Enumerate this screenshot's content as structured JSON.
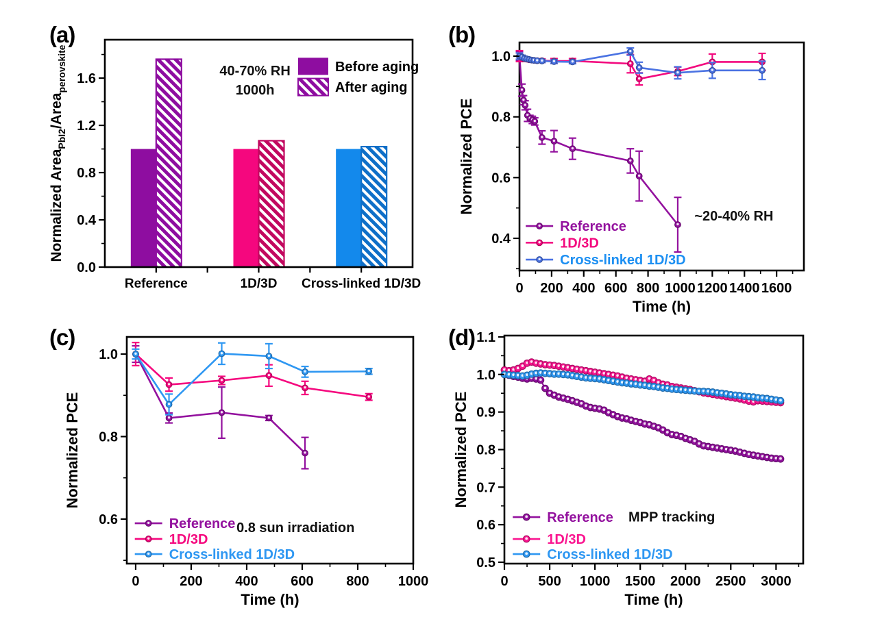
{
  "figure": {
    "background": "#ffffff",
    "description": "Four-panel stability figure for perovskite solar cells"
  },
  "palette": {
    "purple": "#93119E",
    "purple_bar": "#8E0DA0",
    "pink": "#F5077E",
    "pink_dark_hatch": "#C2085F",
    "blue_bar": "#1389EC",
    "blue_dark_hatch": "#0E6FC8",
    "blue_line_b": "#4A72E2",
    "blue_line_cd": "#2E97F2",
    "black": "#000000"
  },
  "chart_data": [
    {
      "panel": "a",
      "panel_label": "(a)",
      "type": "bar",
      "ylabel_segments": [
        {
          "text": "Normalized Area"
        },
        {
          "text": "PbI2",
          "sub": true
        },
        {
          "text": "/Area"
        },
        {
          "text": "perovskite",
          "sub": true
        }
      ],
      "categories": [
        "Reference",
        "1D/3D",
        "Cross-linked 1D/3D"
      ],
      "groups": [
        {
          "label": "Before aging",
          "hatch": false,
          "values": [
            1.0,
            1.0,
            1.0
          ],
          "colors": [
            "#8E0DA0",
            "#F5077E",
            "#1389EC"
          ]
        },
        {
          "label": "After aging",
          "hatch": true,
          "values": [
            1.76,
            1.07,
            1.02
          ],
          "colors": [
            "#8E0DA0",
            "#C2085F",
            "#0E6FC8"
          ]
        }
      ],
      "ylim": [
        0,
        1.925
      ],
      "yticks": [
        "0.0",
        "0.4",
        "0.8",
        "1.2",
        "1.6"
      ],
      "annotation": [
        "40-70% RH",
        "1000h"
      ],
      "legend": {
        "items": [
          {
            "label": "Before aging",
            "swatch": "solid",
            "color": "#8E0DA0"
          },
          {
            "label": "After aging",
            "swatch": "hatch",
            "color": "#8E0DA0"
          }
        ]
      }
    },
    {
      "panel": "b",
      "panel_label": "(b)",
      "type": "line",
      "ylabel": "Normalized PCE",
      "xlabel": "Time (h)",
      "xlim": [
        0,
        1770
      ],
      "ylim": [
        0.294,
        1.045
      ],
      "xticks": [
        0,
        200,
        400,
        600,
        800,
        1000,
        1200,
        1400,
        1600
      ],
      "yticks": [
        "0.4",
        "0.6",
        "0.8",
        "1.0"
      ],
      "annotation": [
        "~20-40% RH"
      ],
      "series": [
        {
          "name": "Reference",
          "color": "#93119E",
          "x": [
            0,
            15,
            25,
            35,
            50,
            65,
            80,
            95,
            140,
            215,
            330,
            690,
            745,
            985
          ],
          "y": [
            1.0,
            0.888,
            0.855,
            0.838,
            0.805,
            0.795,
            0.79,
            0.785,
            0.732,
            0.72,
            0.695,
            0.655,
            0.605,
            0.445
          ],
          "err": [
            0.015,
            0.02,
            0.015,
            0.015,
            0.02,
            0.01,
            0.012,
            0.012,
            0.022,
            0.035,
            0.035,
            0.04,
            0.082,
            0.09
          ]
        },
        {
          "name": "1D/3D",
          "color": "#F3087E",
          "x": [
            0,
            15,
            30,
            45,
            60,
            75,
            90,
            110,
            140,
            215,
            330,
            690,
            745,
            985,
            1200,
            1510
          ],
          "y": [
            1.0,
            0.995,
            0.991,
            0.99,
            0.988,
            0.987,
            0.986,
            0.985,
            0.985,
            0.984,
            0.984,
            0.975,
            0.925,
            0.95,
            0.981,
            0.981
          ],
          "err": [
            0.018,
            0.008,
            0.006,
            0.006,
            0.006,
            0.006,
            0.006,
            0.006,
            0.006,
            0.008,
            0.008,
            0.03,
            0.02,
            0.014,
            0.026,
            0.028
          ]
        },
        {
          "name": "Cross-linked 1D/3D",
          "color": "#4A72E2",
          "label_color": "#1C8FF2",
          "x": [
            0,
            15,
            30,
            45,
            60,
            75,
            90,
            110,
            140,
            215,
            330,
            690,
            745,
            985,
            1200,
            1510
          ],
          "y": [
            1.0,
            0.997,
            0.993,
            0.991,
            0.989,
            0.987,
            0.986,
            0.985,
            0.984,
            0.982,
            0.981,
            1.015,
            0.962,
            0.945,
            0.953,
            0.953
          ],
          "err": [
            0.01,
            0.006,
            0.005,
            0.005,
            0.005,
            0.005,
            0.005,
            0.005,
            0.005,
            0.006,
            0.006,
            0.012,
            0.018,
            0.02,
            0.026,
            0.03
          ]
        }
      ]
    },
    {
      "panel": "c",
      "panel_label": "(c)",
      "type": "line",
      "ylabel": "Normalized PCE",
      "xlabel": "Time (h)",
      "xlim": [
        -32,
        1000
      ],
      "ylim": [
        0.492,
        1.0415
      ],
      "xticks": [
        0,
        200,
        400,
        600,
        800,
        1000
      ],
      "yticks": [
        "0.6",
        "0.8",
        "1.0"
      ],
      "annotation": [
        "0.8 sun irradiation"
      ],
      "series": [
        {
          "name": "Reference",
          "color": "#93119E",
          "x": [
            0,
            120,
            310,
            480,
            610
          ],
          "y": [
            1.0,
            0.845,
            0.858,
            0.845,
            0.76
          ],
          "err": [
            0.02,
            0.012,
            0.062,
            0.006,
            0.038
          ]
        },
        {
          "name": "1D/3D",
          "color": "#F5077E",
          "x": [
            0,
            120,
            310,
            480,
            610,
            840
          ],
          "y": [
            1.0,
            0.926,
            0.936,
            0.948,
            0.918,
            0.896
          ],
          "err": [
            0.028,
            0.016,
            0.01,
            0.026,
            0.016,
            0.008
          ]
        },
        {
          "name": "Cross-linked 1D/3D",
          "color": "#2E97F2",
          "x": [
            0,
            120,
            310,
            480,
            610,
            840
          ],
          "y": [
            1.0,
            0.878,
            1.001,
            0.995,
            0.957,
            0.958
          ],
          "err": [
            0.012,
            0.025,
            0.026,
            0.03,
            0.013,
            0.007
          ]
        }
      ]
    },
    {
      "panel": "d",
      "panel_label": "(d)",
      "type": "line",
      "ylabel": "Normalized PCE",
      "xlabel": "Time (h)",
      "xlim": [
        0,
        3300
      ],
      "ylim": [
        0.4963,
        1.1036
      ],
      "xticks": [
        0,
        500,
        1000,
        1500,
        2000,
        2500,
        3000
      ],
      "yticks": [
        "0.5",
        "0.6",
        "0.7",
        "0.8",
        "0.9",
        "1.0",
        "1.1"
      ],
      "annotation": [
        "MPP tracking"
      ],
      "series": [
        {
          "name": "Reference",
          "color": "#93119E",
          "x": [
            0,
            50,
            100,
            150,
            200,
            250,
            300,
            350,
            400,
            450,
            500,
            550,
            600,
            650,
            700,
            750,
            800,
            850,
            900,
            950,
            1000,
            1050,
            1100,
            1150,
            1200,
            1250,
            1300,
            1350,
            1400,
            1450,
            1500,
            1550,
            1600,
            1650,
            1700,
            1750,
            1800,
            1850,
            1900,
            1950,
            2000,
            2050,
            2100,
            2150,
            2200,
            2250,
            2300,
            2350,
            2400,
            2450,
            2500,
            2550,
            2600,
            2650,
            2700,
            2750,
            2800,
            2850,
            2900,
            2950,
            3000,
            3050
          ],
          "y": [
            1.0,
            0.998,
            0.995,
            0.993,
            0.99,
            0.988,
            0.99,
            0.988,
            0.985,
            0.963,
            0.95,
            0.945,
            0.94,
            0.937,
            0.934,
            0.93,
            0.926,
            0.922,
            0.916,
            0.912,
            0.91,
            0.908,
            0.905,
            0.898,
            0.893,
            0.888,
            0.884,
            0.882,
            0.878,
            0.875,
            0.872,
            0.868,
            0.866,
            0.862,
            0.858,
            0.852,
            0.845,
            0.84,
            0.838,
            0.835,
            0.83,
            0.826,
            0.822,
            0.815,
            0.81,
            0.808,
            0.806,
            0.804,
            0.802,
            0.8,
            0.798,
            0.796,
            0.793,
            0.79,
            0.787,
            0.785,
            0.783,
            0.781,
            0.779,
            0.777,
            0.776,
            0.775
          ]
        },
        {
          "name": "1D/3D",
          "color": "#FA1590",
          "x": [
            0,
            50,
            100,
            150,
            200,
            250,
            300,
            350,
            400,
            450,
            500,
            550,
            600,
            650,
            700,
            750,
            800,
            850,
            900,
            950,
            1000,
            1050,
            1100,
            1150,
            1200,
            1250,
            1300,
            1350,
            1400,
            1450,
            1500,
            1550,
            1600,
            1650,
            1700,
            1750,
            1800,
            1850,
            1900,
            1950,
            2000,
            2050,
            2100,
            2150,
            2200,
            2250,
            2300,
            2350,
            2400,
            2450,
            2500,
            2550,
            2600,
            2650,
            2700,
            2750,
            2800,
            2850,
            2900,
            2950,
            3000,
            3050
          ],
          "y": [
            1.012,
            1.01,
            1.012,
            1.016,
            1.022,
            1.03,
            1.033,
            1.03,
            1.028,
            1.026,
            1.025,
            1.024,
            1.022,
            1.02,
            1.018,
            1.016,
            1.014,
            1.012,
            1.01,
            1.008,
            1.006,
            1.004,
            1.002,
            1.0,
            0.998,
            0.996,
            0.993,
            0.99,
            0.988,
            0.986,
            0.984,
            0.982,
            0.988,
            0.984,
            0.978,
            0.974,
            0.972,
            0.968,
            0.966,
            0.964,
            0.962,
            0.96,
            0.957,
            0.954,
            0.951,
            0.949,
            0.947,
            0.945,
            0.943,
            0.941,
            0.939,
            0.937,
            0.935,
            0.932,
            0.929,
            0.927,
            0.93,
            0.929,
            0.928,
            0.927,
            0.926,
            0.925
          ]
        },
        {
          "name": "Cross-linked 1D/3D",
          "color": "#2E97F2",
          "x": [
            0,
            50,
            100,
            150,
            200,
            250,
            300,
            350,
            400,
            450,
            500,
            550,
            600,
            650,
            700,
            750,
            800,
            850,
            900,
            950,
            1000,
            1050,
            1100,
            1150,
            1200,
            1250,
            1300,
            1350,
            1400,
            1450,
            1500,
            1550,
            1600,
            1650,
            1700,
            1750,
            1800,
            1850,
            1900,
            1950,
            2000,
            2050,
            2100,
            2150,
            2200,
            2250,
            2300,
            2350,
            2400,
            2450,
            2500,
            2550,
            2600,
            2650,
            2700,
            2750,
            2800,
            2850,
            2900,
            2950,
            3000,
            3050
          ],
          "y": [
            1.0,
            0.999,
            0.998,
            0.997,
            0.996,
            0.998,
            1.001,
            1.003,
            1.004,
            1.003,
            1.002,
            1.001,
            1.001,
            1.0,
            0.999,
            0.997,
            0.995,
            0.993,
            0.991,
            0.99,
            0.989,
            0.988,
            0.986,
            0.984,
            0.982,
            0.98,
            0.978,
            0.977,
            0.975,
            0.974,
            0.972,
            0.971,
            0.969,
            0.968,
            0.966,
            0.964,
            0.963,
            0.961,
            0.96,
            0.959,
            0.958,
            0.957,
            0.956,
            0.955,
            0.955,
            0.954,
            0.953,
            0.951,
            0.95,
            0.948,
            0.946,
            0.945,
            0.944,
            0.942,
            0.941,
            0.94,
            0.938,
            0.937,
            0.936,
            0.934,
            0.932,
            0.93
          ]
        }
      ]
    }
  ]
}
